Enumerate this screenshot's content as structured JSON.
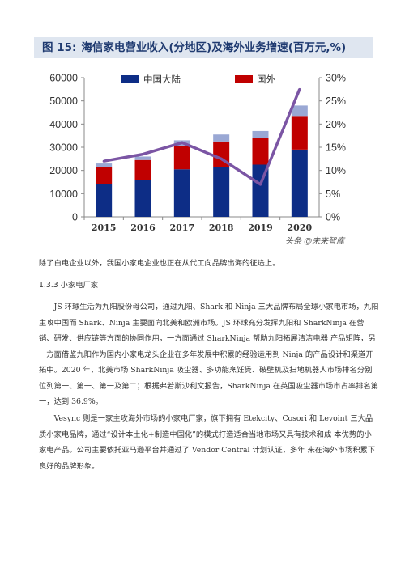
{
  "figure": {
    "number": "图 15:",
    "title": "海信家电营业收入(分地区)及海外业务增速(百万元,%)"
  },
  "chart_data": {
    "type": "bar",
    "stacked": true,
    "categories": [
      "2015",
      "2016",
      "2017",
      "2018",
      "2019",
      "2020"
    ],
    "series": [
      {
        "name": "中国大陆",
        "type": "bar",
        "axis": "left",
        "color": "#0d2d86",
        "values": [
          14000,
          16000,
          20500,
          21500,
          22500,
          29000
        ]
      },
      {
        "name": "国外",
        "type": "bar",
        "axis": "left",
        "color": "#c00000",
        "values": [
          7500,
          8500,
          10000,
          11000,
          11500,
          14500
        ]
      },
      {
        "name": "",
        "type": "bar",
        "axis": "left",
        "color": "#9aa8d4",
        "values": [
          1500,
          1500,
          2500,
          3000,
          3000,
          4500
        ]
      },
      {
        "name": "",
        "type": "line",
        "axis": "right",
        "color": "#7b55a4",
        "values": [
          12,
          13.5,
          16,
          12.5,
          7,
          27.5
        ]
      }
    ],
    "left_axis": {
      "ticks": [
        "0",
        "10000",
        "20000",
        "30000",
        "40000",
        "50000",
        "60000"
      ],
      "ylim": [
        0,
        60000
      ]
    },
    "right_axis": {
      "ticks": [
        "0%",
        "5%",
        "10%",
        "15%",
        "20%",
        "25%",
        "30%"
      ],
      "ylim": [
        0,
        30
      ]
    },
    "legend_position": "top",
    "grid": false
  },
  "watermark": "头条 @未来智库",
  "paragraphs": {
    "p1": "除了白电企业以外，我国小家电企业也正在从代工向品牌出海的征途上。",
    "h1": "1.3.3 小家电厂家",
    "p2": "JS 环球生活为九阳股份母公司，通过九阳、Shark 和 Ninja 三大品牌布局全球小家电市场，九阳主攻中国而 Shark、Ninja 主要面向北美和欧洲市场。JS 环球充分发挥九阳和 SharkNinja 在营销、研发、供应链等方面的协同作用，一方面通过 SharkNinja 帮助九阳拓展清洁电器 产品矩阵，另一方面借鉴九阳作为国内小家电龙头企业在多年发展中积累的经验运用到 Ninja 的产品设计和渠道开拓中。2020 年，北美市场 SharkNinja 吸尘器、多功能烹饪煲、破壁机及扫地机器人市场排名分别位列第一、第一、第一及第二；根据弗若斯沙利文报告，SharkNinja 在英国吸尘器市场市占率排名第一，达到 36.9%。",
    "p3": "Vesync 则是一家主攻海外市场的小家电厂家，旗下拥有 Etekcity、Cosori 和 Levoint 三大品质小家电品牌，通过“设计本土化+制造中国化”的模式打造适合当地市场又具有技术和成 本优势的小家电产品。公司主要依托亚马逊平台并通过了 Vendor Central 计划认证，多年 来在海外市场积累下良好的品牌形象。"
  }
}
